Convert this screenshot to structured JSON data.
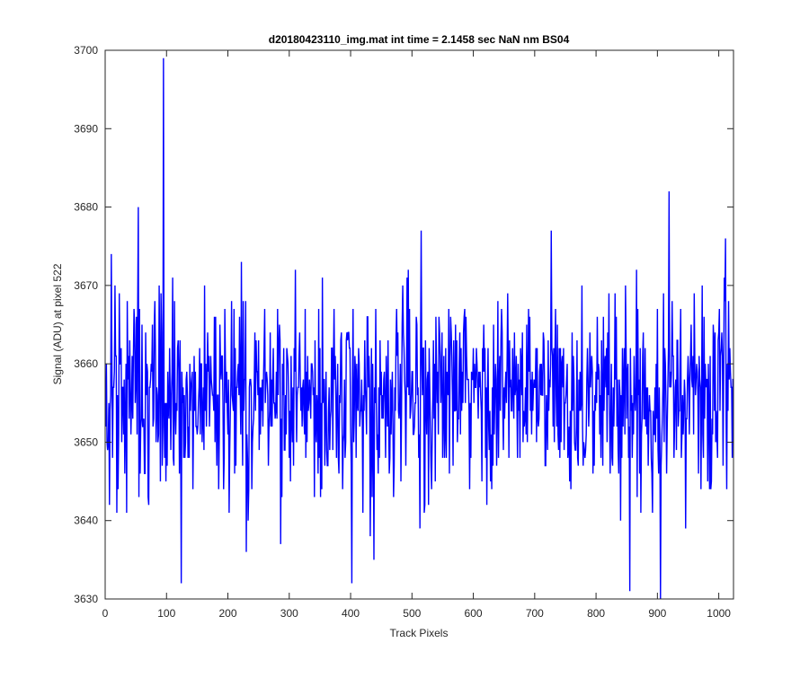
{
  "chart_data": {
    "type": "line",
    "title": "d20180423110_img.mat int time = 2.1458 sec  NaN nm BS04",
    "xlabel": "Track Pixels",
    "ylabel": "Signal (ADU) at pixel 522",
    "xlim": [
      0,
      1024
    ],
    "ylim": [
      3630,
      3700
    ],
    "xticks": [
      0,
      100,
      200,
      300,
      400,
      500,
      600,
      700,
      800,
      900,
      1000
    ],
    "yticks": [
      3630,
      3640,
      3650,
      3660,
      3670,
      3680,
      3690,
      3700
    ],
    "grid": false,
    "series": [
      {
        "color": "#0000ff",
        "x_start": 1,
        "x_step": 1,
        "n_points": 1024,
        "mean": 3656,
        "notable_points": [
          {
            "x": 95,
            "y": 3699
          },
          {
            "x": 54,
            "y": 3680
          },
          {
            "x": 124,
            "y": 3632
          },
          {
            "x": 402,
            "y": 3632
          },
          {
            "x": 855,
            "y": 3631
          },
          {
            "x": 905,
            "y": 3630
          },
          {
            "x": 919,
            "y": 3682
          },
          {
            "x": 1011,
            "y": 3676
          },
          {
            "x": 10,
            "y": 3674
          },
          {
            "x": 230,
            "y": 3636
          },
          {
            "x": 438,
            "y": 3635
          },
          {
            "x": 515,
            "y": 3677
          }
        ]
      }
    ]
  },
  "colors": {
    "series": "#0000ff",
    "axes": "#262626",
    "background": "#ffffff"
  }
}
